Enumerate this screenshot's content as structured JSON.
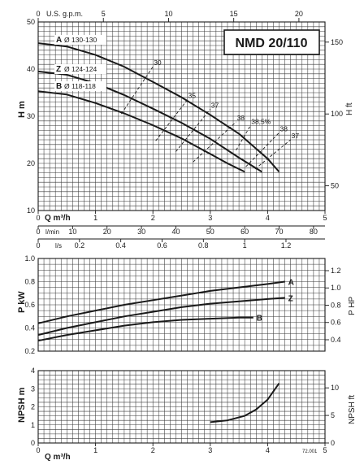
{
  "model": "NMD 20/110",
  "code": "72.001",
  "chart_data": [
    {
      "type": "line",
      "id": "head",
      "ylabel": "H m",
      "ylabel_right": "H ft",
      "ylim": [
        10,
        50
      ],
      "y_ticks": [
        10,
        20,
        30,
        40,
        50
      ],
      "ft_ticks": [
        50,
        100,
        150
      ],
      "x_axes": [
        {
          "label": "U.S. g.p.m.",
          "ticks": [
            0,
            5,
            10,
            15,
            20
          ],
          "range": [
            0,
            22
          ]
        },
        {
          "label": "Q m³/h",
          "ticks": [
            0,
            1,
            2,
            3,
            4,
            5
          ],
          "range": [
            0,
            5
          ]
        },
        {
          "label": "l/min",
          "ticks": [
            0,
            10,
            20,
            30,
            40,
            50,
            60,
            70,
            80
          ],
          "range": [
            0,
            83.33
          ]
        },
        {
          "label": "l/s",
          "ticks": [
            0,
            0.2,
            0.4,
            0.6,
            0.8,
            1,
            1.2
          ],
          "range": [
            0,
            1.389
          ]
        }
      ],
      "series": [
        {
          "name": "A",
          "label": "Ø 130-130",
          "x": [
            0,
            0.5,
            1,
            1.5,
            2,
            2.5,
            3,
            3.5,
            4,
            4.2
          ],
          "y": [
            45.5,
            44.8,
            43.0,
            40.5,
            37.3,
            34.0,
            30.3,
            26.3,
            21.0,
            18.2
          ]
        },
        {
          "name": "Z",
          "label": "Ø 124-124",
          "x": [
            0,
            0.5,
            1,
            1.5,
            2,
            2.5,
            3,
            3.5,
            3.9
          ],
          "y": [
            39.5,
            38.8,
            37.0,
            34.5,
            31.6,
            28.6,
            25.2,
            21.2,
            18.2
          ]
        },
        {
          "name": "B",
          "label": "Ø 118-118",
          "x": [
            0,
            0.5,
            1,
            1.5,
            2,
            2.5,
            3,
            3.3,
            3.6
          ],
          "y": [
            35.3,
            34.6,
            32.8,
            30.6,
            28.1,
            25.3,
            22.0,
            20.0,
            18.2
          ]
        }
      ],
      "efficiency": [
        {
          "label": "30",
          "x": [
            1.45,
            2.0
          ],
          "y": [
            30.5,
            40.5
          ]
        },
        {
          "label": "35",
          "x": [
            2.05,
            2.6
          ],
          "y": [
            24.8,
            33.5
          ]
        },
        {
          "label": "37",
          "x": [
            2.4,
            3.0
          ],
          "y": [
            22.5,
            31.5
          ]
        },
        {
          "label": "38",
          "x": [
            2.7,
            3.45
          ],
          "y": [
            20.3,
            28.8
          ]
        },
        {
          "label": "38,5%",
          "x": [
            3.45,
            3.7
          ],
          "y": [
            22.8,
            28.0
          ]
        },
        {
          "label": "38",
          "x": [
            3.62,
            4.2
          ],
          "y": [
            19.3,
            26.5
          ]
        },
        {
          "label": "37",
          "x": [
            3.78,
            4.4
          ],
          "y": [
            18.8,
            25.0
          ]
        }
      ]
    },
    {
      "type": "line",
      "id": "power",
      "ylabel": "P kW",
      "ylabel_right": "P HP",
      "ylim": [
        0.2,
        1.0
      ],
      "y_ticks": [
        0.2,
        0.4,
        0.6,
        0.8,
        1.0
      ],
      "hp_ticks": [
        0.4,
        0.6,
        0.8,
        1.0,
        1.2
      ],
      "series": [
        {
          "name": "A",
          "x": [
            0,
            0.5,
            1,
            1.5,
            2,
            2.5,
            3,
            3.5,
            4,
            4.3
          ],
          "y": [
            0.44,
            0.5,
            0.55,
            0.6,
            0.64,
            0.68,
            0.72,
            0.75,
            0.78,
            0.8
          ]
        },
        {
          "name": "Z",
          "x": [
            0,
            0.5,
            1,
            1.5,
            2,
            2.5,
            3,
            3.5,
            4,
            4.3
          ],
          "y": [
            0.34,
            0.4,
            0.45,
            0.5,
            0.54,
            0.58,
            0.61,
            0.63,
            0.65,
            0.66
          ]
        },
        {
          "name": "B",
          "x": [
            0,
            0.5,
            1,
            1.5,
            2,
            2.5,
            3,
            3.5,
            3.75
          ],
          "y": [
            0.29,
            0.34,
            0.38,
            0.42,
            0.45,
            0.47,
            0.48,
            0.49,
            0.49
          ]
        }
      ]
    },
    {
      "type": "line",
      "id": "npsh",
      "ylabel": "NPSH m",
      "ylabel_right": "NPSH ft",
      "xlabel": "Q m³/h",
      "ylim": [
        0,
        4
      ],
      "y_ticks": [
        0,
        1,
        2,
        3,
        4
      ],
      "ft_ticks": [
        0,
        5,
        10
      ],
      "x_ticks": [
        0,
        1,
        2,
        3,
        4,
        5
      ],
      "series": [
        {
          "name": "NPSH",
          "x": [
            3.0,
            3.3,
            3.6,
            3.8,
            4.0,
            4.2
          ],
          "y": [
            1.15,
            1.25,
            1.5,
            1.85,
            2.4,
            3.3
          ]
        }
      ]
    }
  ]
}
